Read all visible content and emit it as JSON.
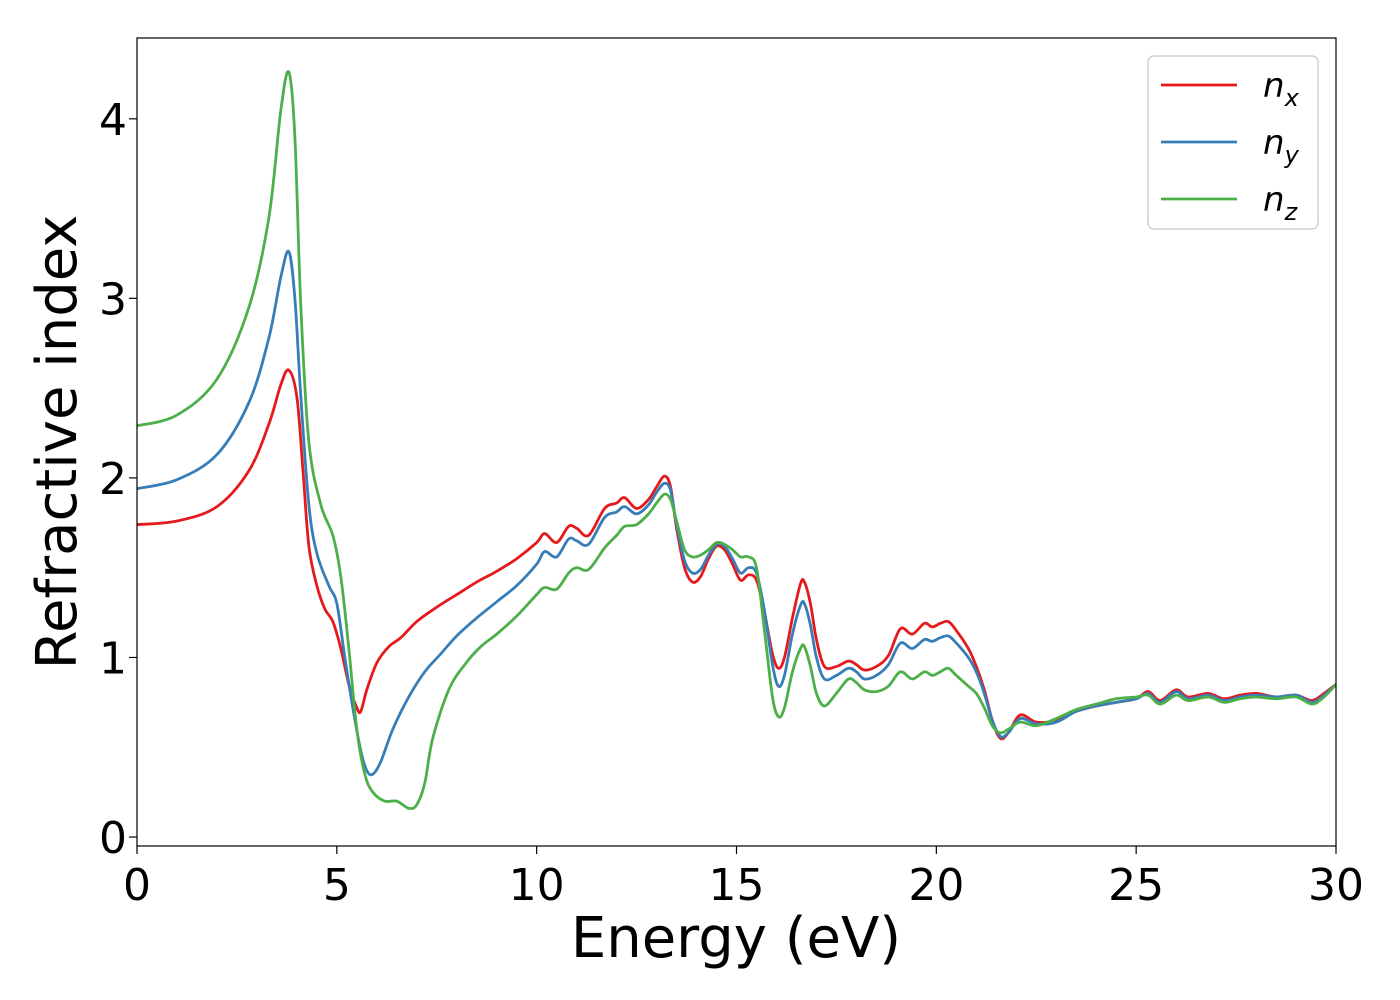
{
  "chart_data": {
    "type": "line",
    "xlabel": "Energy (eV)",
    "ylabel": "Refractive index",
    "xlim": [
      0,
      30
    ],
    "ylim": [
      -0.05,
      4.45
    ],
    "xticks": [
      "0",
      "5",
      "10",
      "15",
      "20",
      "25",
      "30"
    ],
    "yticks": [
      "0",
      "1",
      "2",
      "3",
      "4"
    ],
    "grid": false,
    "legend_position": "top-right",
    "series": [
      {
        "name": "n",
        "sub": "x",
        "color": "#e41a1c",
        "points": [
          [
            0,
            1.74
          ],
          [
            1,
            1.76
          ],
          [
            2,
            1.84
          ],
          [
            2.8,
            2.04
          ],
          [
            3.3,
            2.3
          ],
          [
            3.6,
            2.52
          ],
          [
            3.8,
            2.6
          ],
          [
            4.0,
            2.45
          ],
          [
            4.15,
            2.05
          ],
          [
            4.3,
            1.62
          ],
          [
            4.5,
            1.4
          ],
          [
            4.7,
            1.27
          ],
          [
            4.9,
            1.2
          ],
          [
            5.1,
            1.05
          ],
          [
            5.3,
            0.85
          ],
          [
            5.5,
            0.72
          ],
          [
            5.6,
            0.7
          ],
          [
            5.75,
            0.82
          ],
          [
            6.0,
            0.97
          ],
          [
            6.3,
            1.06
          ],
          [
            6.6,
            1.11
          ],
          [
            7.0,
            1.2
          ],
          [
            7.5,
            1.28
          ],
          [
            8.0,
            1.35
          ],
          [
            8.5,
            1.42
          ],
          [
            9.0,
            1.48
          ],
          [
            9.5,
            1.55
          ],
          [
            10.0,
            1.64
          ],
          [
            10.2,
            1.69
          ],
          [
            10.5,
            1.64
          ],
          [
            10.8,
            1.73
          ],
          [
            11.0,
            1.72
          ],
          [
            11.3,
            1.68
          ],
          [
            11.7,
            1.83
          ],
          [
            12.0,
            1.86
          ],
          [
            12.2,
            1.89
          ],
          [
            12.5,
            1.83
          ],
          [
            12.8,
            1.88
          ],
          [
            13.0,
            1.95
          ],
          [
            13.2,
            2.01
          ],
          [
            13.35,
            1.95
          ],
          [
            13.5,
            1.72
          ],
          [
            13.7,
            1.5
          ],
          [
            13.9,
            1.42
          ],
          [
            14.1,
            1.45
          ],
          [
            14.3,
            1.55
          ],
          [
            14.5,
            1.62
          ],
          [
            14.7,
            1.6
          ],
          [
            14.9,
            1.52
          ],
          [
            15.1,
            1.43
          ],
          [
            15.3,
            1.46
          ],
          [
            15.5,
            1.43
          ],
          [
            15.7,
            1.25
          ],
          [
            15.9,
            1.02
          ],
          [
            16.05,
            0.94
          ],
          [
            16.2,
            1.0
          ],
          [
            16.4,
            1.22
          ],
          [
            16.6,
            1.41
          ],
          [
            16.7,
            1.42
          ],
          [
            16.85,
            1.3
          ],
          [
            17.0,
            1.1
          ],
          [
            17.2,
            0.95
          ],
          [
            17.5,
            0.95
          ],
          [
            17.8,
            0.98
          ],
          [
            18.0,
            0.96
          ],
          [
            18.2,
            0.93
          ],
          [
            18.5,
            0.95
          ],
          [
            18.8,
            1.01
          ],
          [
            19.1,
            1.16
          ],
          [
            19.4,
            1.13
          ],
          [
            19.7,
            1.19
          ],
          [
            19.9,
            1.17
          ],
          [
            20.1,
            1.19
          ],
          [
            20.3,
            1.2
          ],
          [
            20.5,
            1.15
          ],
          [
            20.8,
            1.05
          ],
          [
            21.0,
            0.95
          ],
          [
            21.2,
            0.82
          ],
          [
            21.4,
            0.65
          ],
          [
            21.6,
            0.55
          ],
          [
            21.8,
            0.58
          ],
          [
            22.1,
            0.68
          ],
          [
            22.5,
            0.64
          ],
          [
            23.0,
            0.65
          ],
          [
            23.5,
            0.7
          ],
          [
            24.0,
            0.73
          ],
          [
            24.5,
            0.75
          ],
          [
            25.0,
            0.77
          ],
          [
            25.3,
            0.81
          ],
          [
            25.6,
            0.76
          ],
          [
            26.0,
            0.82
          ],
          [
            26.3,
            0.78
          ],
          [
            26.8,
            0.8
          ],
          [
            27.2,
            0.77
          ],
          [
            27.6,
            0.79
          ],
          [
            28.0,
            0.8
          ],
          [
            28.5,
            0.78
          ],
          [
            29.0,
            0.79
          ],
          [
            29.4,
            0.76
          ],
          [
            29.7,
            0.8
          ],
          [
            30.0,
            0.85
          ]
        ]
      },
      {
        "name": "n",
        "sub": "y",
        "color": "#377eb8",
        "points": [
          [
            0,
            1.94
          ],
          [
            1,
            1.99
          ],
          [
            2,
            2.13
          ],
          [
            2.8,
            2.42
          ],
          [
            3.3,
            2.78
          ],
          [
            3.6,
            3.12
          ],
          [
            3.8,
            3.26
          ],
          [
            3.95,
            3.0
          ],
          [
            4.1,
            2.45
          ],
          [
            4.3,
            1.85
          ],
          [
            4.5,
            1.58
          ],
          [
            4.8,
            1.4
          ],
          [
            5.0,
            1.3
          ],
          [
            5.2,
            1.0
          ],
          [
            5.4,
            0.72
          ],
          [
            5.6,
            0.48
          ],
          [
            5.75,
            0.37
          ],
          [
            5.9,
            0.35
          ],
          [
            6.1,
            0.42
          ],
          [
            6.4,
            0.6
          ],
          [
            6.8,
            0.78
          ],
          [
            7.2,
            0.92
          ],
          [
            7.6,
            1.02
          ],
          [
            8.0,
            1.12
          ],
          [
            8.5,
            1.22
          ],
          [
            9.0,
            1.31
          ],
          [
            9.5,
            1.4
          ],
          [
            10.0,
            1.52
          ],
          [
            10.2,
            1.59
          ],
          [
            10.5,
            1.56
          ],
          [
            10.8,
            1.66
          ],
          [
            11.0,
            1.65
          ],
          [
            11.3,
            1.63
          ],
          [
            11.7,
            1.78
          ],
          [
            12.0,
            1.81
          ],
          [
            12.2,
            1.84
          ],
          [
            12.5,
            1.8
          ],
          [
            12.8,
            1.85
          ],
          [
            13.0,
            1.92
          ],
          [
            13.2,
            1.97
          ],
          [
            13.35,
            1.93
          ],
          [
            13.5,
            1.74
          ],
          [
            13.7,
            1.54
          ],
          [
            13.9,
            1.47
          ],
          [
            14.1,
            1.49
          ],
          [
            14.3,
            1.57
          ],
          [
            14.5,
            1.63
          ],
          [
            14.7,
            1.62
          ],
          [
            14.9,
            1.55
          ],
          [
            15.1,
            1.47
          ],
          [
            15.3,
            1.5
          ],
          [
            15.5,
            1.47
          ],
          [
            15.7,
            1.26
          ],
          [
            15.9,
            0.96
          ],
          [
            16.05,
            0.84
          ],
          [
            16.2,
            0.9
          ],
          [
            16.4,
            1.13
          ],
          [
            16.6,
            1.29
          ],
          [
            16.7,
            1.3
          ],
          [
            16.85,
            1.18
          ],
          [
            17.0,
            1.0
          ],
          [
            17.2,
            0.88
          ],
          [
            17.5,
            0.9
          ],
          [
            17.8,
            0.94
          ],
          [
            18.0,
            0.92
          ],
          [
            18.2,
            0.88
          ],
          [
            18.5,
            0.9
          ],
          [
            18.8,
            0.96
          ],
          [
            19.1,
            1.08
          ],
          [
            19.4,
            1.05
          ],
          [
            19.7,
            1.1
          ],
          [
            19.9,
            1.09
          ],
          [
            20.1,
            1.11
          ],
          [
            20.3,
            1.12
          ],
          [
            20.5,
            1.08
          ],
          [
            20.8,
            1.0
          ],
          [
            21.0,
            0.92
          ],
          [
            21.2,
            0.8
          ],
          [
            21.4,
            0.65
          ],
          [
            21.6,
            0.56
          ],
          [
            21.8,
            0.58
          ],
          [
            22.1,
            0.66
          ],
          [
            22.5,
            0.63
          ],
          [
            23.0,
            0.64
          ],
          [
            23.5,
            0.7
          ],
          [
            24.0,
            0.73
          ],
          [
            24.5,
            0.75
          ],
          [
            25.0,
            0.77
          ],
          [
            25.3,
            0.8
          ],
          [
            25.6,
            0.75
          ],
          [
            26.0,
            0.81
          ],
          [
            26.3,
            0.77
          ],
          [
            26.8,
            0.79
          ],
          [
            27.2,
            0.76
          ],
          [
            27.6,
            0.78
          ],
          [
            28.0,
            0.79
          ],
          [
            28.5,
            0.78
          ],
          [
            29.0,
            0.79
          ],
          [
            29.4,
            0.75
          ],
          [
            29.7,
            0.79
          ],
          [
            30.0,
            0.85
          ]
        ]
      },
      {
        "name": "n",
        "sub": "z",
        "color": "#4daf4a",
        "points": [
          [
            0,
            2.29
          ],
          [
            1,
            2.35
          ],
          [
            2,
            2.55
          ],
          [
            2.8,
            2.95
          ],
          [
            3.3,
            3.45
          ],
          [
            3.6,
            4.05
          ],
          [
            3.8,
            4.26
          ],
          [
            3.95,
            3.9
          ],
          [
            4.1,
            2.95
          ],
          [
            4.3,
            2.2
          ],
          [
            4.6,
            1.85
          ],
          [
            4.9,
            1.68
          ],
          [
            5.1,
            1.45
          ],
          [
            5.3,
            1.05
          ],
          [
            5.5,
            0.6
          ],
          [
            5.7,
            0.35
          ],
          [
            5.9,
            0.25
          ],
          [
            6.2,
            0.2
          ],
          [
            6.5,
            0.2
          ],
          [
            6.8,
            0.16
          ],
          [
            7.0,
            0.18
          ],
          [
            7.2,
            0.3
          ],
          [
            7.4,
            0.55
          ],
          [
            7.8,
            0.82
          ],
          [
            8.2,
            0.96
          ],
          [
            8.6,
            1.06
          ],
          [
            9.0,
            1.13
          ],
          [
            9.5,
            1.23
          ],
          [
            10.0,
            1.35
          ],
          [
            10.2,
            1.39
          ],
          [
            10.5,
            1.38
          ],
          [
            10.8,
            1.47
          ],
          [
            11.0,
            1.5
          ],
          [
            11.3,
            1.49
          ],
          [
            11.7,
            1.61
          ],
          [
            12.0,
            1.68
          ],
          [
            12.2,
            1.73
          ],
          [
            12.5,
            1.74
          ],
          [
            12.8,
            1.8
          ],
          [
            13.0,
            1.86
          ],
          [
            13.2,
            1.91
          ],
          [
            13.35,
            1.88
          ],
          [
            13.5,
            1.76
          ],
          [
            13.7,
            1.6
          ],
          [
            13.9,
            1.56
          ],
          [
            14.1,
            1.57
          ],
          [
            14.3,
            1.6
          ],
          [
            14.5,
            1.64
          ],
          [
            14.7,
            1.63
          ],
          [
            14.9,
            1.6
          ],
          [
            15.1,
            1.56
          ],
          [
            15.3,
            1.56
          ],
          [
            15.5,
            1.5
          ],
          [
            15.7,
            1.15
          ],
          [
            15.9,
            0.78
          ],
          [
            16.05,
            0.67
          ],
          [
            16.2,
            0.72
          ],
          [
            16.4,
            0.92
          ],
          [
            16.6,
            1.05
          ],
          [
            16.7,
            1.06
          ],
          [
            16.85,
            0.95
          ],
          [
            17.0,
            0.8
          ],
          [
            17.2,
            0.73
          ],
          [
            17.5,
            0.8
          ],
          [
            17.8,
            0.88
          ],
          [
            18.0,
            0.86
          ],
          [
            18.2,
            0.82
          ],
          [
            18.5,
            0.81
          ],
          [
            18.8,
            0.84
          ],
          [
            19.1,
            0.92
          ],
          [
            19.4,
            0.88
          ],
          [
            19.7,
            0.92
          ],
          [
            19.9,
            0.9
          ],
          [
            20.1,
            0.92
          ],
          [
            20.3,
            0.94
          ],
          [
            20.5,
            0.9
          ],
          [
            20.8,
            0.84
          ],
          [
            21.0,
            0.8
          ],
          [
            21.2,
            0.72
          ],
          [
            21.4,
            0.62
          ],
          [
            21.6,
            0.58
          ],
          [
            21.8,
            0.6
          ],
          [
            22.1,
            0.64
          ],
          [
            22.5,
            0.62
          ],
          [
            23.0,
            0.66
          ],
          [
            23.5,
            0.71
          ],
          [
            24.0,
            0.74
          ],
          [
            24.5,
            0.77
          ],
          [
            25.0,
            0.78
          ],
          [
            25.3,
            0.79
          ],
          [
            25.6,
            0.74
          ],
          [
            26.0,
            0.79
          ],
          [
            26.3,
            0.76
          ],
          [
            26.8,
            0.78
          ],
          [
            27.2,
            0.75
          ],
          [
            27.6,
            0.77
          ],
          [
            28.0,
            0.78
          ],
          [
            28.5,
            0.77
          ],
          [
            29.0,
            0.78
          ],
          [
            29.4,
            0.74
          ],
          [
            29.7,
            0.78
          ],
          [
            30.0,
            0.85
          ]
        ]
      }
    ]
  }
}
